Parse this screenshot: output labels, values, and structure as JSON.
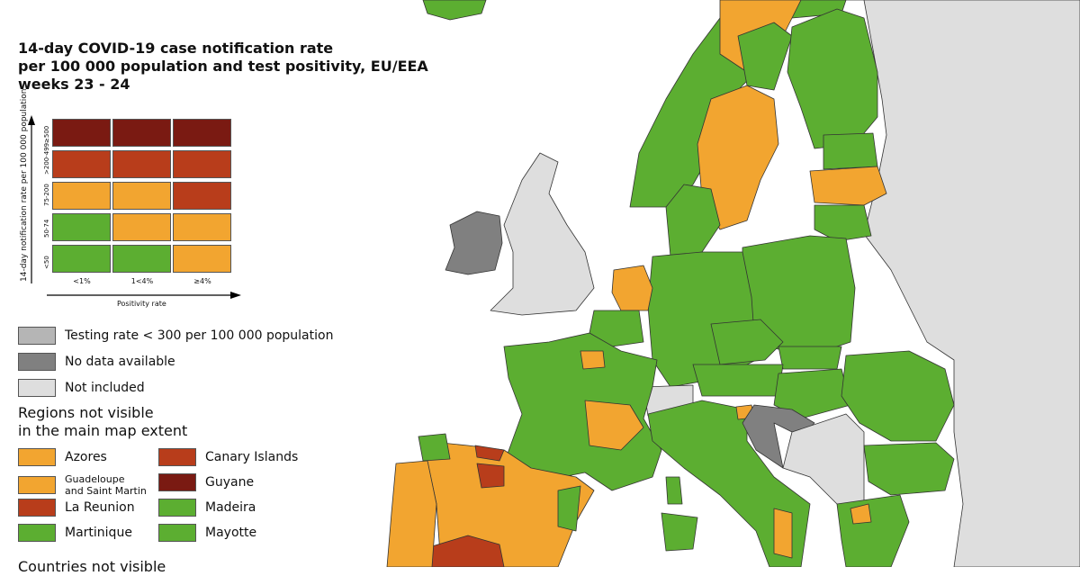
{
  "title": [
    "14-day COVID-19 case notification rate",
    "per 100 000 population and test positivity, EU/EEA",
    "weeks 23 - 24"
  ],
  "colors": {
    "dark_red": "#7a1a12",
    "red": "#b83d1b",
    "orange": "#f2a530",
    "green": "#5cae31",
    "testing": "#b5b5b5",
    "no_data": "#808080",
    "not_included": "#dedede"
  },
  "matrix": {
    "y_axis_label": "14-day notification rate per 100 000 population",
    "x_axis_label": "Positivity rate",
    "rows": [
      "≥500",
      ">200-499",
      "75-200",
      "50-74",
      "<50"
    ],
    "columns": [
      "<1%",
      "1<4%",
      "≥4%"
    ],
    "cells": [
      [
        "dark_red",
        "dark_red",
        "dark_red"
      ],
      [
        "red",
        "red",
        "red"
      ],
      [
        "orange",
        "orange",
        "red"
      ],
      [
        "green",
        "orange",
        "orange"
      ],
      [
        "green",
        "green",
        "orange"
      ]
    ]
  },
  "legend": {
    "testing": "Testing rate < 300 per 100 000 population",
    "no_data": "No data available",
    "not_included": "Not included"
  },
  "regions_heading": [
    "Regions not visible",
    "in the main map extent"
  ],
  "regions": [
    {
      "name": "Azores",
      "color": "orange"
    },
    {
      "name": "Canary Islands",
      "color": "red"
    },
    {
      "name": "Guadeloupe\nand Saint Martin",
      "color": "orange"
    },
    {
      "name": "Guyane",
      "color": "dark_red"
    },
    {
      "name": "La Reunion",
      "color": "red"
    },
    {
      "name": "Madeira",
      "color": "green"
    },
    {
      "name": "Martinique",
      "color": "green"
    },
    {
      "name": "Mayotte",
      "color": "green"
    }
  ],
  "countries_heading": "Countries not visible"
}
